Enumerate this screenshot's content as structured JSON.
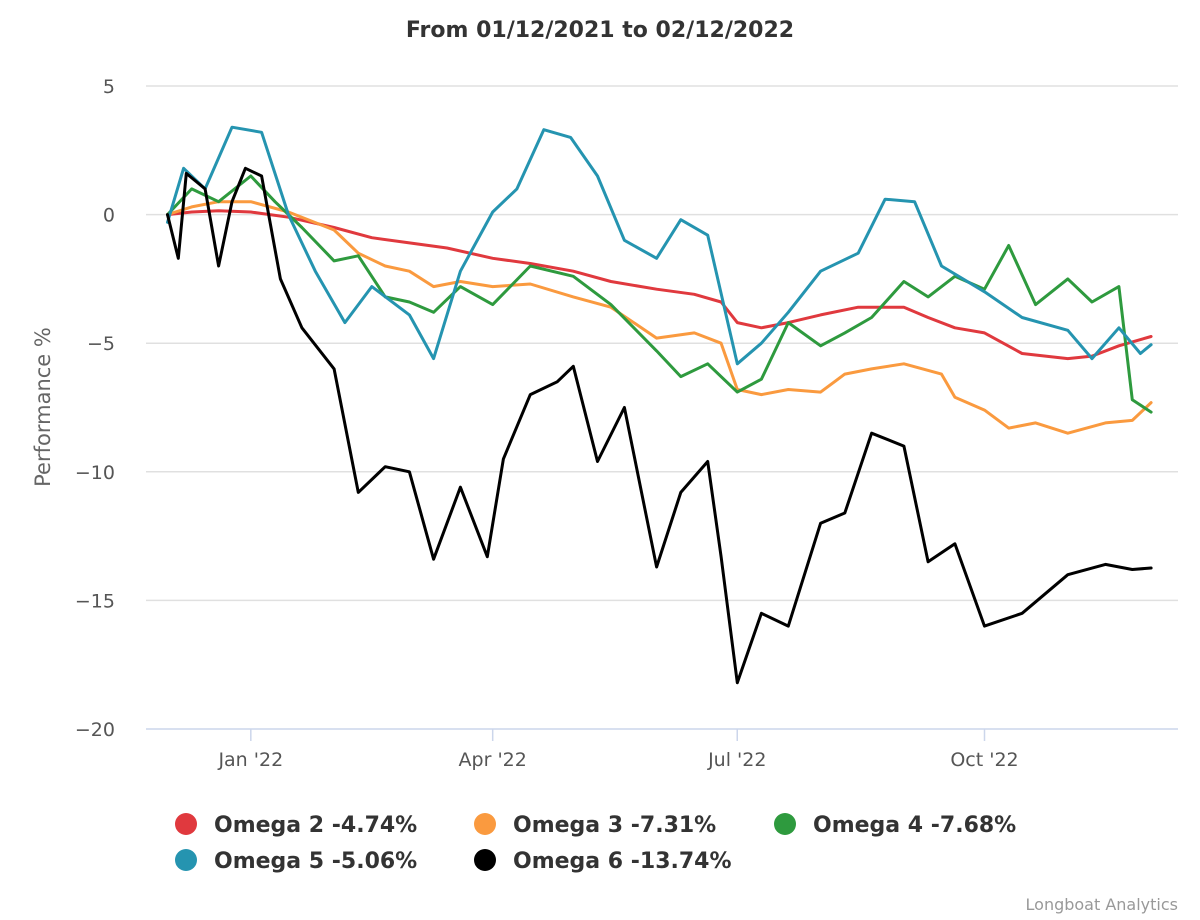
{
  "chart_data": {
    "type": "line",
    "title": "From 01/12/2021 to 02/12/2022",
    "xlabel": "",
    "ylabel": "Performance %",
    "x_start": "2021-12-01",
    "x_end": "2022-12-02",
    "xlim": [
      "2021-11-23",
      "2022-12-12"
    ],
    "ylim": [
      -20,
      5
    ],
    "yticks": [
      5,
      0,
      -5,
      -10,
      -15,
      -20
    ],
    "xticks": [
      {
        "date": "2022-01-01",
        "label": "Jan '22"
      },
      {
        "date": "2022-04-01",
        "label": "Apr '22"
      },
      {
        "date": "2022-07-01",
        "label": "Jul '22"
      },
      {
        "date": "2022-10-01",
        "label": "Oct '22"
      }
    ],
    "grid": true,
    "legend_position": "bottom",
    "series": [
      {
        "name": "Omega 2 -4.74%",
        "color": "#e0393e",
        "points": [
          [
            "2021-12-01",
            0.0
          ],
          [
            "2021-12-10",
            0.1
          ],
          [
            "2021-12-20",
            0.15
          ],
          [
            "2022-01-01",
            0.1
          ],
          [
            "2022-01-15",
            -0.1
          ],
          [
            "2022-02-01",
            -0.5
          ],
          [
            "2022-02-15",
            -0.9
          ],
          [
            "2022-03-01",
            -1.1
          ],
          [
            "2022-03-15",
            -1.3
          ],
          [
            "2022-04-01",
            -1.7
          ],
          [
            "2022-04-15",
            -1.9
          ],
          [
            "2022-05-01",
            -2.2
          ],
          [
            "2022-05-15",
            -2.6
          ],
          [
            "2022-06-01",
            -2.9
          ],
          [
            "2022-06-15",
            -3.1
          ],
          [
            "2022-06-25",
            -3.4
          ],
          [
            "2022-07-01",
            -4.2
          ],
          [
            "2022-07-10",
            -4.4
          ],
          [
            "2022-07-20",
            -4.2
          ],
          [
            "2022-08-01",
            -3.9
          ],
          [
            "2022-08-15",
            -3.6
          ],
          [
            "2022-09-01",
            -3.6
          ],
          [
            "2022-09-10",
            -4.0
          ],
          [
            "2022-09-20",
            -4.4
          ],
          [
            "2022-10-01",
            -4.6
          ],
          [
            "2022-10-15",
            -5.4
          ],
          [
            "2022-11-01",
            -5.6
          ],
          [
            "2022-11-10",
            -5.5
          ],
          [
            "2022-11-20",
            -5.1
          ],
          [
            "2022-12-02",
            -4.74
          ]
        ]
      },
      {
        "name": "Omega 3 -7.31%",
        "color": "#fa9a3f",
        "points": [
          [
            "2021-12-01",
            0.0
          ],
          [
            "2021-12-10",
            0.3
          ],
          [
            "2021-12-20",
            0.5
          ],
          [
            "2022-01-01",
            0.5
          ],
          [
            "2022-01-15",
            0.1
          ],
          [
            "2022-02-01",
            -0.6
          ],
          [
            "2022-02-10",
            -1.5
          ],
          [
            "2022-02-20",
            -2.0
          ],
          [
            "2022-03-01",
            -2.2
          ],
          [
            "2022-03-10",
            -2.8
          ],
          [
            "2022-03-20",
            -2.6
          ],
          [
            "2022-04-01",
            -2.8
          ],
          [
            "2022-04-15",
            -2.7
          ],
          [
            "2022-05-01",
            -3.2
          ],
          [
            "2022-05-15",
            -3.6
          ],
          [
            "2022-06-01",
            -4.8
          ],
          [
            "2022-06-15",
            -4.6
          ],
          [
            "2022-06-25",
            -5.0
          ],
          [
            "2022-07-01",
            -6.8
          ],
          [
            "2022-07-10",
            -7.0
          ],
          [
            "2022-07-20",
            -6.8
          ],
          [
            "2022-08-01",
            -6.9
          ],
          [
            "2022-08-10",
            -6.2
          ],
          [
            "2022-08-20",
            -6.0
          ],
          [
            "2022-09-01",
            -5.8
          ],
          [
            "2022-09-15",
            -6.2
          ],
          [
            "2022-09-20",
            -7.1
          ],
          [
            "2022-10-01",
            -7.6
          ],
          [
            "2022-10-10",
            -8.3
          ],
          [
            "2022-10-20",
            -8.1
          ],
          [
            "2022-11-01",
            -8.5
          ],
          [
            "2022-11-15",
            -8.1
          ],
          [
            "2022-11-25",
            -8.0
          ],
          [
            "2022-12-02",
            -7.31
          ]
        ]
      },
      {
        "name": "Omega 4 -7.68%",
        "color": "#2e9a3e",
        "points": [
          [
            "2021-12-01",
            0.0
          ],
          [
            "2021-12-10",
            1.0
          ],
          [
            "2021-12-20",
            0.5
          ],
          [
            "2022-01-01",
            1.5
          ],
          [
            "2022-01-10",
            0.5
          ],
          [
            "2022-01-20",
            -0.5
          ],
          [
            "2022-02-01",
            -1.8
          ],
          [
            "2022-02-10",
            -1.6
          ],
          [
            "2022-02-20",
            -3.2
          ],
          [
            "2022-03-01",
            -3.4
          ],
          [
            "2022-03-10",
            -3.8
          ],
          [
            "2022-03-20",
            -2.8
          ],
          [
            "2022-04-01",
            -3.5
          ],
          [
            "2022-04-15",
            -2.0
          ],
          [
            "2022-05-01",
            -2.4
          ],
          [
            "2022-05-15",
            -3.5
          ],
          [
            "2022-06-01",
            -5.3
          ],
          [
            "2022-06-10",
            -6.3
          ],
          [
            "2022-06-20",
            -5.8
          ],
          [
            "2022-07-01",
            -6.9
          ],
          [
            "2022-07-10",
            -6.4
          ],
          [
            "2022-07-20",
            -4.2
          ],
          [
            "2022-08-01",
            -5.1
          ],
          [
            "2022-08-10",
            -4.6
          ],
          [
            "2022-08-20",
            -4.0
          ],
          [
            "2022-09-01",
            -2.6
          ],
          [
            "2022-09-10",
            -3.2
          ],
          [
            "2022-09-20",
            -2.4
          ],
          [
            "2022-10-01",
            -2.9
          ],
          [
            "2022-10-10",
            -1.2
          ],
          [
            "2022-10-20",
            -3.5
          ],
          [
            "2022-11-01",
            -2.5
          ],
          [
            "2022-11-10",
            -3.4
          ],
          [
            "2022-11-20",
            -2.8
          ],
          [
            "2022-11-25",
            -7.2
          ],
          [
            "2022-12-02",
            -7.68
          ]
        ]
      },
      {
        "name": "Omega 5 -5.06%",
        "color": "#2594b0",
        "points": [
          [
            "2021-12-01",
            -0.3
          ],
          [
            "2021-12-07",
            1.8
          ],
          [
            "2021-12-15",
            1.0
          ],
          [
            "2021-12-25",
            3.4
          ],
          [
            "2022-01-05",
            3.2
          ],
          [
            "2022-01-15",
            0.0
          ],
          [
            "2022-01-25",
            -2.2
          ],
          [
            "2022-02-05",
            -4.2
          ],
          [
            "2022-02-15",
            -2.8
          ],
          [
            "2022-03-01",
            -3.9
          ],
          [
            "2022-03-10",
            -5.6
          ],
          [
            "2022-03-20",
            -2.2
          ],
          [
            "2022-04-01",
            0.1
          ],
          [
            "2022-04-10",
            1.0
          ],
          [
            "2022-04-20",
            3.3
          ],
          [
            "2022-04-30",
            3.0
          ],
          [
            "2022-05-10",
            1.5
          ],
          [
            "2022-05-20",
            -1.0
          ],
          [
            "2022-06-01",
            -1.7
          ],
          [
            "2022-06-10",
            -0.2
          ],
          [
            "2022-06-20",
            -0.8
          ],
          [
            "2022-07-01",
            -5.8
          ],
          [
            "2022-07-10",
            -5.0
          ],
          [
            "2022-07-20",
            -3.8
          ],
          [
            "2022-08-01",
            -2.2
          ],
          [
            "2022-08-15",
            -1.5
          ],
          [
            "2022-08-25",
            0.6
          ],
          [
            "2022-09-05",
            0.5
          ],
          [
            "2022-09-15",
            -2.0
          ],
          [
            "2022-10-01",
            -3.0
          ],
          [
            "2022-10-15",
            -4.0
          ],
          [
            "2022-11-01",
            -4.5
          ],
          [
            "2022-11-10",
            -5.6
          ],
          [
            "2022-11-20",
            -4.4
          ],
          [
            "2022-11-28",
            -5.4
          ],
          [
            "2022-12-02",
            -5.06
          ]
        ]
      },
      {
        "name": "Omega 6 -13.74%",
        "color": "#000000",
        "points": [
          [
            "2021-12-01",
            0.0
          ],
          [
            "2021-12-05",
            -1.7
          ],
          [
            "2021-12-08",
            1.6
          ],
          [
            "2021-12-15",
            1.0
          ],
          [
            "2021-12-20",
            -2.0
          ],
          [
            "2021-12-25",
            0.5
          ],
          [
            "2021-12-30",
            1.8
          ],
          [
            "2022-01-05",
            1.5
          ],
          [
            "2022-01-12",
            -2.5
          ],
          [
            "2022-01-20",
            -4.4
          ],
          [
            "2022-02-01",
            -6.0
          ],
          [
            "2022-02-10",
            -10.8
          ],
          [
            "2022-02-20",
            -9.8
          ],
          [
            "2022-03-01",
            -10.0
          ],
          [
            "2022-03-10",
            -13.4
          ],
          [
            "2022-03-20",
            -10.6
          ],
          [
            "2022-03-30",
            -13.3
          ],
          [
            "2022-04-05",
            -9.5
          ],
          [
            "2022-04-15",
            -7.0
          ],
          [
            "2022-04-25",
            -6.5
          ],
          [
            "2022-05-01",
            -5.9
          ],
          [
            "2022-05-10",
            -9.6
          ],
          [
            "2022-05-20",
            -7.5
          ],
          [
            "2022-06-01",
            -13.7
          ],
          [
            "2022-06-10",
            -10.8
          ],
          [
            "2022-06-20",
            -9.6
          ],
          [
            "2022-06-25",
            -13.3
          ],
          [
            "2022-07-01",
            -18.2
          ],
          [
            "2022-07-10",
            -15.5
          ],
          [
            "2022-07-20",
            -16.0
          ],
          [
            "2022-08-01",
            -12.0
          ],
          [
            "2022-08-10",
            -11.6
          ],
          [
            "2022-08-20",
            -8.5
          ],
          [
            "2022-09-01",
            -9.0
          ],
          [
            "2022-09-10",
            -13.5
          ],
          [
            "2022-09-20",
            -12.8
          ],
          [
            "2022-10-01",
            -16.0
          ],
          [
            "2022-10-15",
            -15.5
          ],
          [
            "2022-11-01",
            -14.0
          ],
          [
            "2022-11-15",
            -13.6
          ],
          [
            "2022-11-25",
            -13.8
          ],
          [
            "2022-12-02",
            -13.74
          ]
        ]
      }
    ],
    "credit": "Longboat Analytics"
  }
}
